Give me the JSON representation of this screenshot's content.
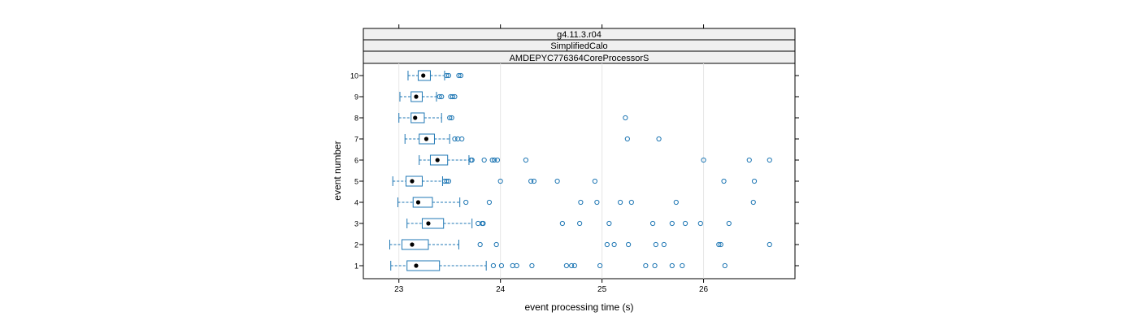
{
  "chart_data": {
    "type": "boxplot",
    "strips": [
      "g4.11.3.r04",
      "SimplifiedCalo",
      "AMDEPYC776364CoreProcessorS"
    ],
    "xlabel": "event processing time (s)",
    "ylabel": "event number",
    "xlim": [
      22.65,
      26.9
    ],
    "x_ticks": [
      23,
      24,
      25,
      26
    ],
    "categories": [
      "1",
      "2",
      "3",
      "4",
      "5",
      "6",
      "7",
      "8",
      "9",
      "10"
    ],
    "grid": "vertical",
    "colors": {
      "box": "#1f77b4",
      "median_dot": "#000000",
      "strip_bg": "#f0f0f0",
      "panel_border": "#000000",
      "grid": "#e6e6e6"
    },
    "boxes": [
      {
        "event": "1",
        "whisker_low": 22.92,
        "q1": 23.08,
        "median": 23.17,
        "q3": 23.4,
        "whisker_high": 23.86,
        "outliers": [
          23.93,
          24.01,
          24.12,
          24.16,
          24.31,
          24.65,
          24.7,
          24.73,
          24.98,
          25.43,
          25.52,
          25.69,
          25.79,
          26.21
        ]
      },
      {
        "event": "2",
        "whisker_low": 22.91,
        "q1": 23.03,
        "median": 23.13,
        "q3": 23.29,
        "whisker_high": 23.59,
        "outliers": [
          23.8,
          23.96,
          25.05,
          25.12,
          25.26,
          25.53,
          25.61,
          26.15,
          26.17,
          26.65
        ]
      },
      {
        "event": "3",
        "whisker_low": 23.08,
        "q1": 23.23,
        "median": 23.29,
        "q3": 23.44,
        "whisker_high": 23.72,
        "outliers": [
          23.78,
          23.82,
          23.83,
          24.61,
          24.78,
          25.07,
          25.5,
          25.69,
          25.82,
          25.97,
          26.25
        ]
      },
      {
        "event": "4",
        "whisker_low": 22.99,
        "q1": 23.14,
        "median": 23.19,
        "q3": 23.33,
        "whisker_high": 23.6,
        "outliers": [
          23.66,
          23.89,
          24.79,
          24.95,
          25.18,
          25.29,
          25.73,
          26.49
        ]
      },
      {
        "event": "5",
        "whisker_low": 22.94,
        "q1": 23.07,
        "median": 23.13,
        "q3": 23.23,
        "whisker_high": 23.43,
        "outliers": [
          23.45,
          23.47,
          23.49,
          24.0,
          24.3,
          24.33,
          24.56,
          24.93,
          26.2,
          26.5
        ]
      },
      {
        "event": "6",
        "whisker_low": 23.2,
        "q1": 23.31,
        "median": 23.38,
        "q3": 23.48,
        "whisker_high": 23.69,
        "outliers": [
          23.71,
          23.72,
          23.84,
          23.92,
          23.94,
          23.97,
          24.25,
          26.0,
          26.45,
          26.65
        ]
      },
      {
        "event": "7",
        "whisker_low": 23.06,
        "q1": 23.2,
        "median": 23.27,
        "q3": 23.35,
        "whisker_high": 23.5,
        "outliers": [
          23.55,
          23.58,
          23.62,
          25.25,
          25.56
        ]
      },
      {
        "event": "8",
        "whisker_low": 23.0,
        "q1": 23.12,
        "median": 23.16,
        "q3": 23.25,
        "whisker_high": 23.42,
        "outliers": [
          23.5,
          23.52,
          25.23
        ]
      },
      {
        "event": "9",
        "whisker_low": 23.01,
        "q1": 23.12,
        "median": 23.17,
        "q3": 23.23,
        "whisker_high": 23.37,
        "outliers": [
          23.4,
          23.42,
          23.51,
          23.53,
          23.55
        ]
      },
      {
        "event": "10",
        "whisker_low": 23.09,
        "q1": 23.19,
        "median": 23.24,
        "q3": 23.31,
        "whisker_high": 23.45,
        "outliers": [
          23.47,
          23.49,
          23.59,
          23.61
        ]
      }
    ]
  }
}
